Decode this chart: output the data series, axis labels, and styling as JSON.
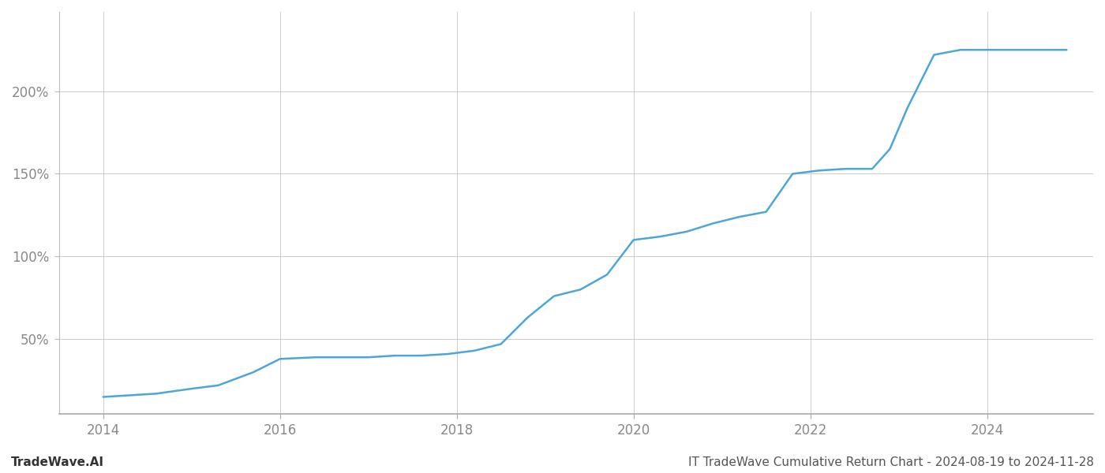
{
  "title": "IT TradeWave Cumulative Return Chart - 2024-08-19 to 2024-11-28",
  "watermark": "TradeWave.AI",
  "line_color": "#4da6d9",
  "background_color": "#ffffff",
  "grid_color": "#cccccc",
  "x_years": [
    2014.0,
    2014.6,
    2015.0,
    2015.3,
    2015.7,
    2016.0,
    2016.4,
    2016.7,
    2017.0,
    2017.3,
    2017.6,
    2017.9,
    2018.2,
    2018.5,
    2018.8,
    2019.1,
    2019.4,
    2019.7,
    2020.0,
    2020.3,
    2020.6,
    2020.9,
    2021.2,
    2021.5,
    2021.8,
    2022.1,
    2022.4,
    2022.7,
    2022.9,
    2023.1,
    2023.4,
    2023.7,
    2024.0,
    2024.4,
    2024.9
  ],
  "y_values": [
    15,
    17,
    20,
    22,
    30,
    38,
    39,
    39,
    39,
    40,
    40,
    41,
    43,
    47,
    63,
    76,
    80,
    89,
    110,
    112,
    115,
    120,
    124,
    127,
    150,
    152,
    153,
    153,
    165,
    190,
    222,
    225,
    225,
    225,
    225
  ],
  "xlim": [
    2013.5,
    2025.2
  ],
  "ylim": [
    5,
    248
  ],
  "yticks": [
    50,
    100,
    150,
    200
  ],
  "ytick_labels": [
    "50%",
    "100%",
    "150%",
    "200%"
  ],
  "xticks": [
    2014,
    2016,
    2018,
    2020,
    2022,
    2024
  ],
  "line_width": 1.8,
  "title_fontsize": 11,
  "tick_fontsize": 12,
  "watermark_fontsize": 11
}
